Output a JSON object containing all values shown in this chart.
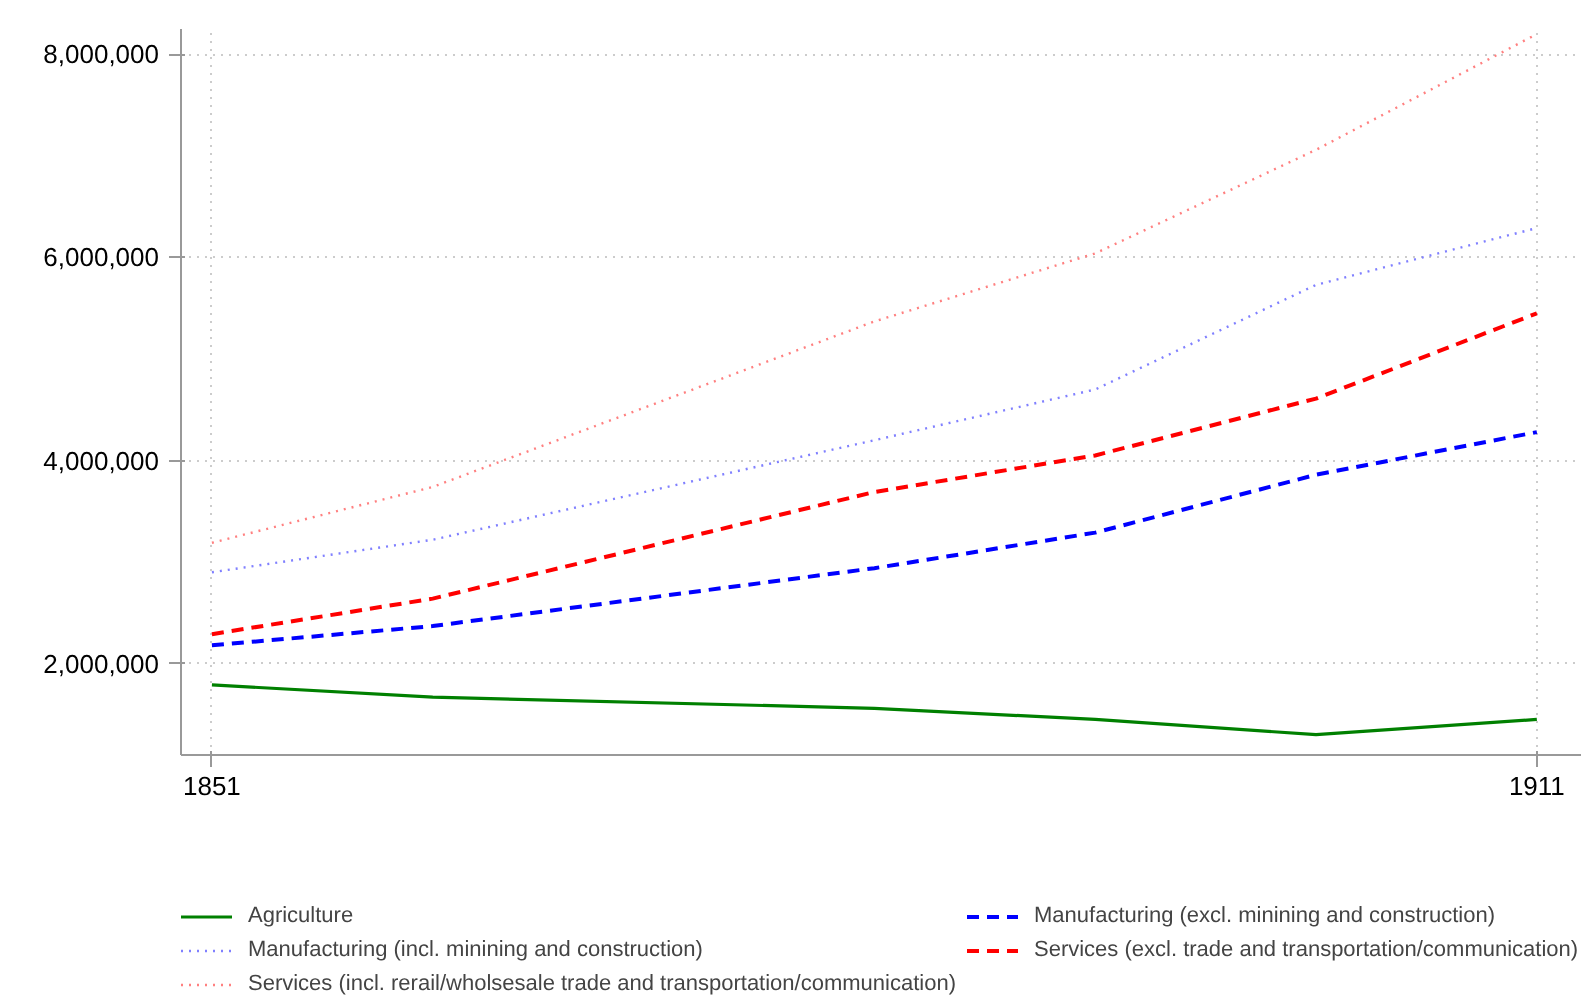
{
  "chart_data": {
    "type": "line",
    "x": [
      1851,
      1861,
      1881,
      1891,
      1901,
      1911
    ],
    "series": [
      {
        "name": "Agriculture",
        "color": "#008000",
        "line_style": "solid",
        "values": [
          1790000,
          1670000,
          1560000,
          1450000,
          1300000,
          1450000
        ]
      },
      {
        "name": "Manufacturing (incl. minining and construction)",
        "color": "#8080ff",
        "line_style": "dotted",
        "values": [
          2900000,
          3220000,
          4200000,
          4700000,
          5730000,
          6290000
        ]
      },
      {
        "name": "Services (incl. rerail/wholsesale trade and transportation/communication)",
        "color": "#ff8080",
        "line_style": "dotted",
        "values": [
          3190000,
          3740000,
          5370000,
          6040000,
          7060000,
          8200000
        ]
      },
      {
        "name": "Manufacturing (excl. minining and construction)",
        "color": "#0000ff",
        "line_style": "dashed",
        "values": [
          2180000,
          2370000,
          2940000,
          3290000,
          3860000,
          4280000
        ]
      },
      {
        "name": "Services (excl. trade and transportation/communication)",
        "color": "#ff0000",
        "line_style": "dashed",
        "values": [
          2290000,
          2640000,
          3690000,
          4050000,
          4610000,
          5450000
        ]
      }
    ],
    "xlim": [
      1849.6,
      1913
    ],
    "ylim": [
      1100000,
      8250000
    ],
    "xticks": [
      1851,
      1911
    ],
    "yticks": [
      {
        "value": 2000000,
        "label": "2,000,000"
      },
      {
        "value": 4000000,
        "label": "4,000,000"
      },
      {
        "value": 6000000,
        "label": "6,000,000"
      },
      {
        "value": 8000000,
        "label": "8,000,000"
      }
    ],
    "grid": true,
    "legend": "bottom"
  }
}
